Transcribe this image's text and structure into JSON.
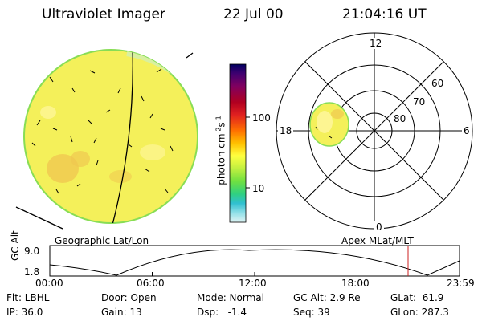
{
  "header": {
    "title": "Ultraviolet Imager",
    "date": "22 Jul 00",
    "time": "21:04:16 UT"
  },
  "colorbar": {
    "unit_label": "photon cm-2s-1",
    "unit_main": "photon cm",
    "unit_exp1": "-2",
    "unit_mid": "s",
    "unit_exp2": "-1",
    "ticks": [
      "100",
      "10"
    ],
    "colors": [
      "#000060",
      "#400070",
      "#800060",
      "#b00020",
      "#e02020",
      "#ff7000",
      "#ffc000",
      "#ffff40",
      "#c0f040",
      "#70e040",
      "#30d080",
      "#30c0d0",
      "#90e0e8",
      "#e0f4f4"
    ]
  },
  "polar": {
    "mlt_labels": {
      "top": "12",
      "left": "18",
      "right": "6",
      "bottom": "0"
    },
    "lat_labels": [
      "60",
      "70",
      "80"
    ]
  },
  "map_labels": {
    "left": "Geographic Lat/Lon",
    "right": "Apex MLat/MLT"
  },
  "timeline": {
    "y_label": "GC Alt",
    "y_ticks": [
      "9.0",
      "1.8"
    ],
    "x_ticks": [
      "00:00",
      "06:00",
      "12:00",
      "18:00",
      "23:59"
    ],
    "marker_color": "#cc2222"
  },
  "footer": {
    "row1": {
      "flt": "Flt: LBHL",
      "door": "Door: Open",
      "mode": "Mode: Normal",
      "gcalt": "GC Alt: 2.9 Re",
      "glat": "GLat:  61.9"
    },
    "row2": {
      "ip": "IP: 36.0",
      "gain": "Gain: 13",
      "dsp": "Dsp:   -1.4",
      "seq": "Seq: 39",
      "glon": "GLon: 287.3"
    }
  },
  "colors": {
    "disk_fill": "#f4f05a",
    "disk_edge": "#88dd55",
    "disk_patch": "#f0c850",
    "limb_bright": "#a8e8e0"
  }
}
